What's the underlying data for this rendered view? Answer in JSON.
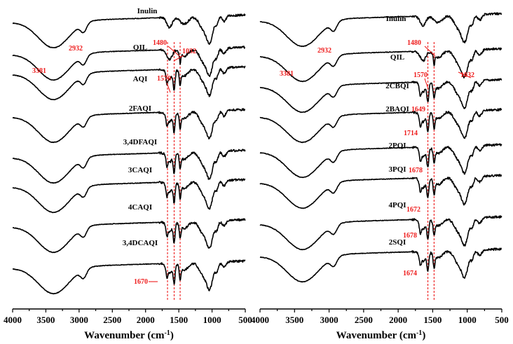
{
  "chart_data": [
    {
      "type": "line",
      "panel": "left",
      "xlabel": "Wavenumber (cm-1)",
      "xlabel_main": "Wavenumber (cm",
      "xlabel_sup": "-1",
      "xlabel_close": ")",
      "xlim": [
        4000,
        500
      ],
      "x_reversed": true,
      "xticks": [
        4000,
        3500,
        3000,
        2500,
        2000,
        1500,
        1000,
        500
      ],
      "ylabel": "",
      "series": [
        {
          "name": "Inulin"
        },
        {
          "name": "QIL"
        },
        {
          "name": "AQI"
        },
        {
          "name": "2FAQI"
        },
        {
          "name": "3,4DFAQI"
        },
        {
          "name": "3CAQI"
        },
        {
          "name": "4CAQI"
        },
        {
          "name": "3,4DCAQI"
        }
      ],
      "annotations": [
        {
          "text": "3381",
          "x": 3381
        },
        {
          "text": "2932",
          "x": 2932
        },
        {
          "text": "1480",
          "x": 1480
        },
        {
          "text": "1032",
          "x": 1032
        },
        {
          "text": "1570",
          "x": 1570
        },
        {
          "text": "1670",
          "x": 1670
        }
      ],
      "reference_lines_x": [
        1670,
        1570,
        1480
      ]
    },
    {
      "type": "line",
      "panel": "right",
      "xlabel": "Wavenumber (cm-1)",
      "xlabel_main": "Wavenumber (cm",
      "xlabel_sup": "-1",
      "xlabel_close": ")",
      "xlim": [
        4000,
        500
      ],
      "x_reversed": true,
      "xticks": [
        4000,
        3500,
        3000,
        2500,
        2000,
        1500,
        1000,
        500
      ],
      "ylabel": "",
      "series": [
        {
          "name": "Inulin"
        },
        {
          "name": "QIL"
        },
        {
          "name": "2CBQI"
        },
        {
          "name": "2BAQI"
        },
        {
          "name": "2PQI"
        },
        {
          "name": "3PQI"
        },
        {
          "name": "4PQI"
        },
        {
          "name": "2SQI"
        }
      ],
      "annotations": [
        {
          "text": "3381",
          "x": 3381
        },
        {
          "text": "2932",
          "x": 2932
        },
        {
          "text": "1480",
          "x": 1480
        },
        {
          "text": "1032",
          "x": 1032
        },
        {
          "text": "1570",
          "x": 1570
        },
        {
          "text": "1649",
          "x": 1649
        },
        {
          "text": "1714",
          "x": 1714
        },
        {
          "text": "1678",
          "x": 1678
        },
        {
          "text": "1672",
          "x": 1672
        },
        {
          "text": "1678",
          "x": 1678
        },
        {
          "text": "1674",
          "x": 1674
        }
      ],
      "reference_lines_x": [
        1570,
        1480
      ]
    }
  ],
  "colors": {
    "trace": "#000000",
    "annotation": "#ee1c1c"
  }
}
